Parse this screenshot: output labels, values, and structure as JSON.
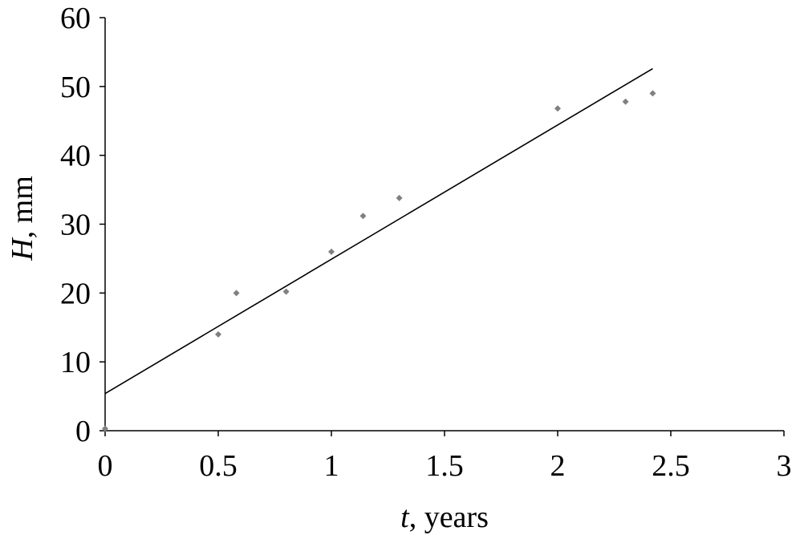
{
  "chart_data": {
    "type": "scatter",
    "x_label": {
      "var": "t",
      "rest": ", years"
    },
    "y_label": {
      "var": "H",
      "rest": ", mm"
    },
    "series": [
      {
        "type": "scatter",
        "color": "#808080",
        "x": [
          0,
          0.5,
          0.58,
          0.8,
          1.0,
          1.14,
          1.3,
          2.0,
          2.3,
          2.42
        ],
        "values": [
          0.3,
          14,
          20,
          20.2,
          26,
          31.2,
          33.8,
          46.8,
          47.8,
          49
        ]
      },
      {
        "type": "line",
        "color": "#000000",
        "x": [
          0,
          2.42
        ],
        "values": [
          5.4,
          52.6
        ]
      }
    ],
    "xlim": [
      0,
      3
    ],
    "xticks": [
      0,
      0.5,
      1,
      1.5,
      2,
      2.5,
      3
    ],
    "ylim": [
      0,
      60
    ],
    "yticks": [
      0,
      10,
      20,
      30,
      40,
      50,
      60
    ],
    "grid": false
  }
}
